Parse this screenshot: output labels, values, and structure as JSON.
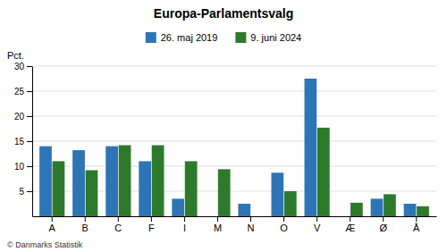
{
  "chart_data": {
    "type": "bar",
    "title": "Europa-Parlamentsvalg",
    "categories": [
      "A",
      "B",
      "C",
      "F",
      "I",
      "M",
      "N",
      "O",
      "V",
      "Æ",
      "Ø",
      "Å"
    ],
    "series": [
      {
        "name": "26. maj 2019",
        "color": "#2E75B6",
        "values": [
          14.0,
          13.2,
          14.0,
          11.0,
          3.5,
          0.0,
          2.5,
          8.7,
          27.5,
          0.0,
          3.5,
          2.5
        ]
      },
      {
        "name": "9. juni 2024",
        "color": "#2D7A2D",
        "values": [
          11.0,
          9.2,
          14.2,
          14.2,
          11.0,
          9.4,
          0.0,
          5.0,
          17.7,
          2.7,
          4.4,
          2.0
        ]
      }
    ],
    "y_label": "Pct.",
    "footnote": "© Danmarks Statistik",
    "ylim": [
      0,
      30
    ],
    "yticks": [
      5,
      10,
      15,
      20,
      25,
      30
    ],
    "grid": true,
    "legend": "top"
  }
}
